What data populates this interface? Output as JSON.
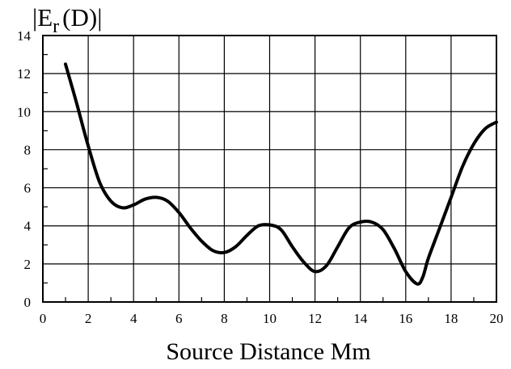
{
  "chart_data": {
    "type": "line",
    "title": "",
    "xlabel": "Source Distance  Mm",
    "ylabel": {
      "prefix": "|E",
      "subscript": "r",
      "suffix": "(D)|"
    },
    "xlim": [
      0,
      20
    ],
    "ylim": [
      0,
      14
    ],
    "xticks": [
      0,
      2,
      4,
      6,
      8,
      10,
      12,
      14,
      16,
      18,
      20
    ],
    "yticks": [
      0,
      2,
      4,
      6,
      8,
      10,
      12,
      14
    ],
    "grid": true,
    "legend": "none",
    "line_color": "#000000",
    "series": [
      {
        "x": [
          1.0,
          1.5,
          2.0,
          2.5,
          3.0,
          3.5,
          4.0,
          4.5,
          5.0,
          5.5,
          6.0,
          6.5,
          7.0,
          7.5,
          8.0,
          8.5,
          9.0,
          9.5,
          10.0,
          10.5,
          11.0,
          11.5,
          12.0,
          12.5,
          13.0,
          13.5,
          14.0,
          14.5,
          15.0,
          15.5,
          16.0,
          16.5,
          16.75,
          17.0,
          17.5,
          18.0,
          18.5,
          19.0,
          19.5,
          20.0
        ],
        "values": [
          12.5,
          10.4,
          8.2,
          6.3,
          5.3,
          4.95,
          5.1,
          5.4,
          5.5,
          5.3,
          4.7,
          3.9,
          3.2,
          2.7,
          2.6,
          2.9,
          3.5,
          4.0,
          4.05,
          3.8,
          2.9,
          2.1,
          1.6,
          1.9,
          2.9,
          3.9,
          4.2,
          4.2,
          3.8,
          2.8,
          1.6,
          0.95,
          1.3,
          2.3,
          3.9,
          5.5,
          7.1,
          8.3,
          9.1,
          9.45
        ]
      }
    ]
  }
}
